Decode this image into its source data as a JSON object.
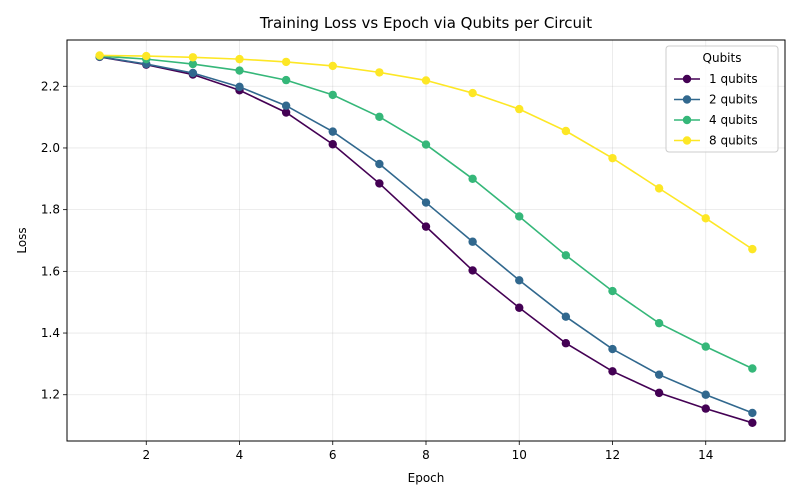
{
  "chart_data": {
    "type": "line",
    "title": "Training Loss vs Epoch via Qubits per Circuit",
    "xlabel": "Epoch",
    "ylabel": "Loss",
    "xlim": [
      0.3,
      15.7
    ],
    "ylim": [
      1.05,
      2.35
    ],
    "xticks": [
      2,
      4,
      6,
      8,
      10,
      12,
      14
    ],
    "yticks": [
      1.2,
      1.4,
      1.6,
      1.8,
      2.0,
      2.2
    ],
    "xtick_labels": [
      "2",
      "4",
      "6",
      "8",
      "10",
      "12",
      "14"
    ],
    "ytick_labels": [
      "1.2",
      "1.4",
      "1.6",
      "1.8",
      "2.0",
      "2.2"
    ],
    "grid": true,
    "legend": {
      "title": "Qubits",
      "position": "top-right"
    },
    "x": [
      1,
      2,
      3,
      4,
      5,
      6,
      7,
      8,
      9,
      10,
      11,
      12,
      13,
      14,
      15
    ],
    "series": [
      {
        "name": "1 qubits",
        "color": "#440154",
        "values": [
          2.295,
          2.27,
          2.238,
          2.187,
          2.115,
          2.012,
          1.885,
          1.745,
          1.603,
          1.482,
          1.367,
          1.276,
          1.206,
          1.155,
          1.109
        ]
      },
      {
        "name": "2 qubits",
        "color": "#31688e",
        "values": [
          2.296,
          2.272,
          2.243,
          2.198,
          2.137,
          2.053,
          1.948,
          1.823,
          1.696,
          1.571,
          1.453,
          1.348,
          1.265,
          1.2,
          1.141
        ]
      },
      {
        "name": "4 qubits",
        "color": "#35b779",
        "values": [
          2.298,
          2.288,
          2.272,
          2.251,
          2.22,
          2.172,
          2.101,
          2.011,
          1.9,
          1.778,
          1.652,
          1.536,
          1.432,
          1.356,
          1.285
        ]
      },
      {
        "name": "8 qubits",
        "color": "#fde725",
        "values": [
          2.3,
          2.298,
          2.294,
          2.288,
          2.279,
          2.266,
          2.245,
          2.219,
          2.178,
          2.126,
          2.055,
          1.967,
          1.869,
          1.772,
          1.672
        ]
      }
    ]
  }
}
